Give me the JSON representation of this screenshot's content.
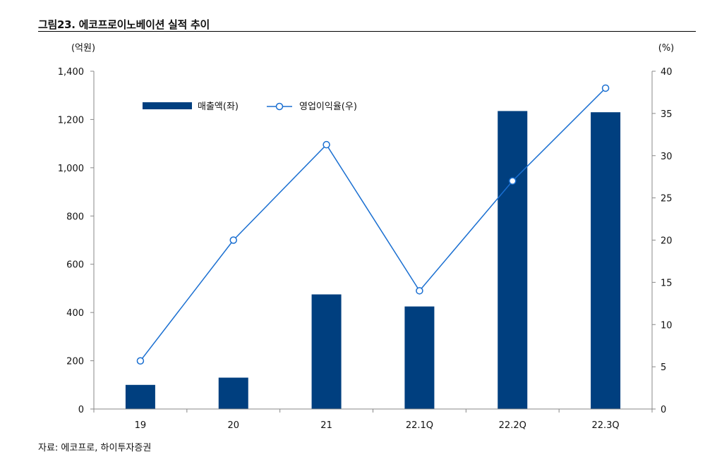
{
  "figure": {
    "title": "그림23. 에코프로이노베이션 실적 추이",
    "source": "자료: 에코프로, 하이투자증권"
  },
  "chart_data": {
    "type": "bar+line",
    "categories": [
      "19",
      "20",
      "21",
      "22.1Q",
      "22.2Q",
      "22.3Q"
    ],
    "series": [
      {
        "name": "매출액(좌)",
        "type": "bar",
        "axis": "left",
        "color": "#003f7f",
        "values": [
          100,
          130,
          475,
          425,
          1235,
          1230
        ]
      },
      {
        "name": "영업이익율(우)",
        "type": "line",
        "axis": "right",
        "color": "#1a6fd1",
        "values": [
          5.7,
          20.0,
          31.3,
          14.0,
          27.0,
          38.0
        ]
      }
    ],
    "y_left": {
      "unit": "(억원)",
      "min": 0,
      "max": 1400,
      "step": 200,
      "ticks": [
        "0",
        "200",
        "400",
        "600",
        "800",
        "1,000",
        "1,200",
        "1,400"
      ]
    },
    "y_right": {
      "unit": "(%)",
      "min": 0,
      "max": 40,
      "step": 5,
      "ticks": [
        "0",
        "5",
        "10",
        "15",
        "20",
        "25",
        "30",
        "35",
        "40"
      ]
    },
    "legend_position": "top-left inside plot",
    "grid": false
  }
}
